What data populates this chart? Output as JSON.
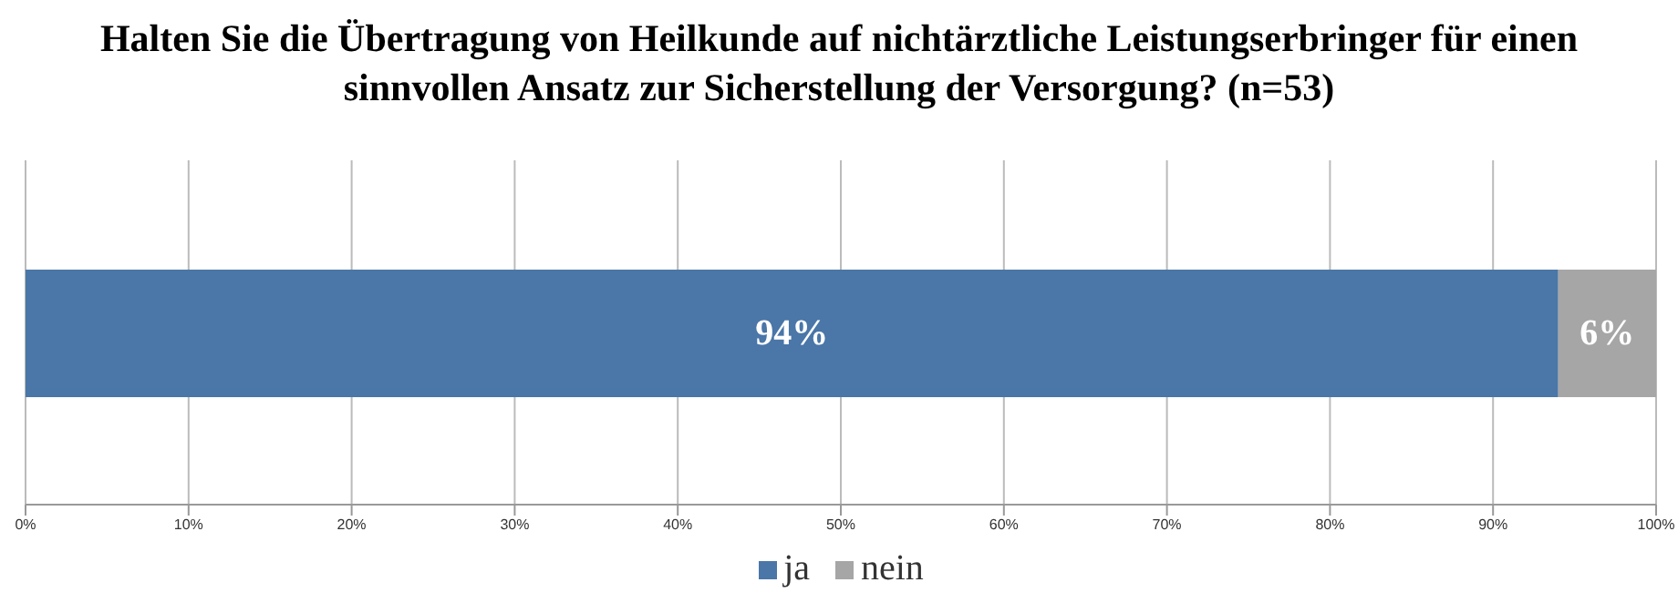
{
  "chart_data": {
    "type": "bar",
    "orientation": "horizontal",
    "stacked": true,
    "title": "Halten Sie die Übertragung von Heilkunde auf nichtärztliche Leistungserbringer für einen sinnvollen Ansatz zur Sicherstellung der Versorgung? (n=53)",
    "categories": [
      null
    ],
    "series": [
      {
        "name": "ja",
        "color": "#4a76a8",
        "values": [
          94
        ],
        "value_labels": [
          "94%"
        ]
      },
      {
        "name": "nein",
        "color": "#a6a6a6",
        "values": [
          6
        ],
        "value_labels": [
          "6%"
        ]
      }
    ],
    "xlim": [
      0,
      100
    ],
    "xticks": [
      {
        "value": 0,
        "label": "0%"
      },
      {
        "value": 10,
        "label": "10%"
      },
      {
        "value": 20,
        "label": "20%"
      },
      {
        "value": 30,
        "label": "30%"
      },
      {
        "value": 40,
        "label": "40%"
      },
      {
        "value": 50,
        "label": "50%"
      },
      {
        "value": 60,
        "label": "60%"
      },
      {
        "value": 70,
        "label": "70%"
      },
      {
        "value": 80,
        "label": "80%"
      },
      {
        "value": 90,
        "label": "90%"
      },
      {
        "value": 100,
        "label": "100%"
      }
    ],
    "grid": "x",
    "legend": "bottom"
  }
}
